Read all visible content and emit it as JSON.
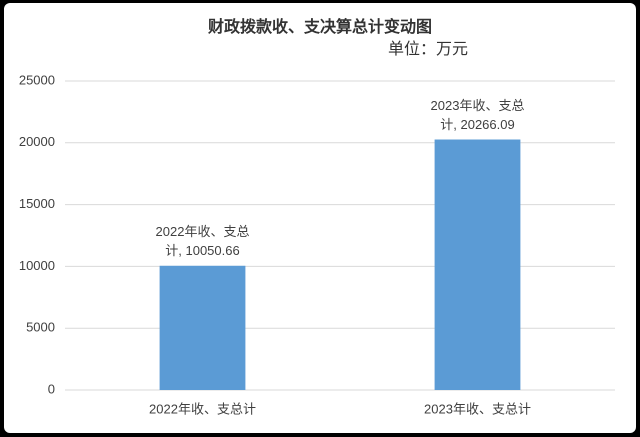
{
  "chart_data": {
    "type": "bar",
    "title": "财政拨款收、支决算总计变动图",
    "subtitle": "单位：万元",
    "categories": [
      "2022年收、支总计",
      "2023年收、支总计"
    ],
    "values": [
      10050.66,
      20266.09
    ],
    "value_labels": [
      "2022年收、支总计, 10050.66",
      "2023年收、支总计, 20266.09"
    ],
    "color": "#5b9bd5",
    "ylim": [
      0,
      25000
    ],
    "yticks": [
      0,
      5000,
      10000,
      15000,
      20000,
      25000
    ],
    "grid": true
  }
}
